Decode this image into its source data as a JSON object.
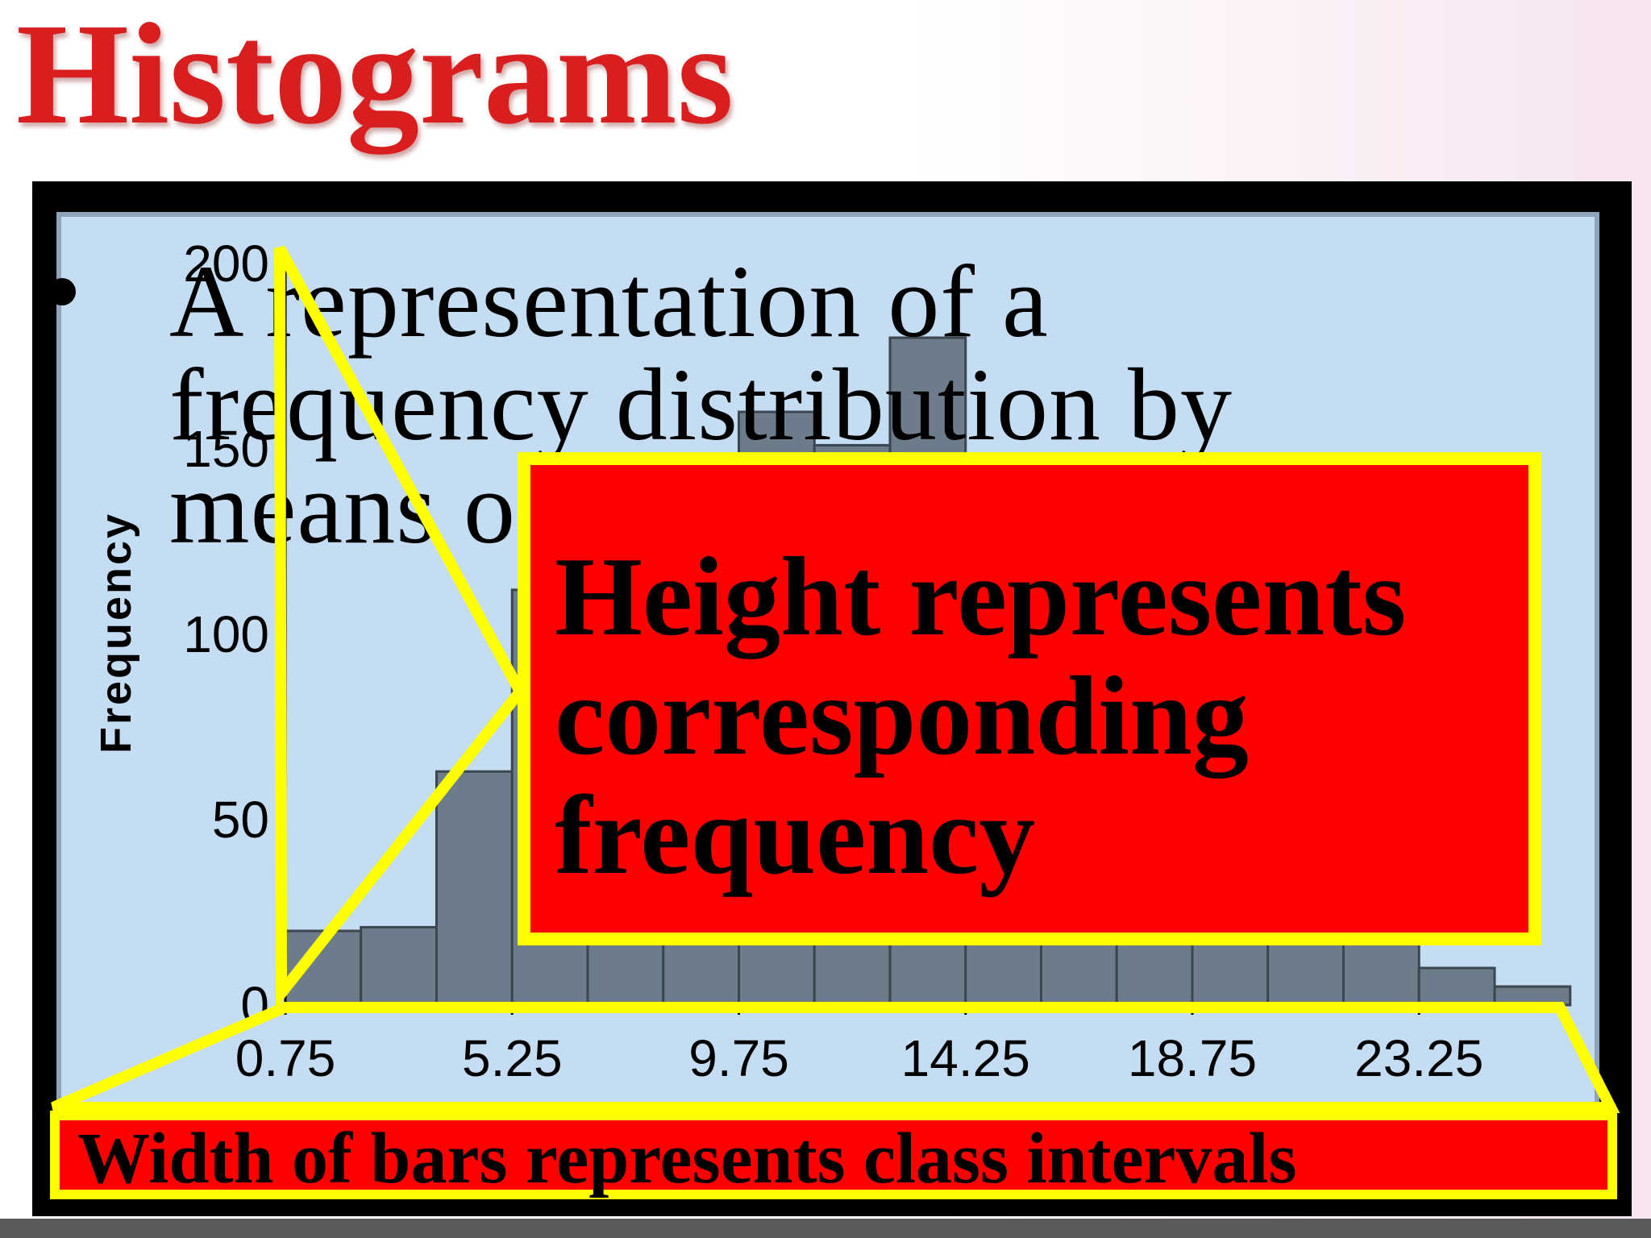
{
  "slide": {
    "title": "Histograms",
    "body_text": "A representation of  a frequency distribution by means of",
    "height_callout": "Height represents corresponding frequency",
    "width_callout": "Width of  bars represents class intervals"
  },
  "colors": {
    "title": "#d81e1e",
    "bar_fill": "#6d7c8a",
    "plot_background": "#c5ddf2",
    "callout_fill": "#ff0000",
    "callout_border": "#ffff00"
  },
  "chart_data": {
    "type": "bar",
    "title": "",
    "xlabel": "",
    "ylabel": "Frequency",
    "bin_width": 1.5,
    "x_start": 0.75,
    "x_ticks": [
      0.75,
      5.25,
      9.75,
      14.25,
      18.75,
      23.25
    ],
    "x_tick_labels": [
      "0.75",
      "5.25",
      "9.75",
      "14.25",
      "18.75",
      "23.25"
    ],
    "y_ticks": [
      0,
      50,
      100,
      150,
      200
    ],
    "y_tick_labels": [
      "0",
      "50",
      "100",
      "150",
      "200"
    ],
    "ylim": [
      0,
      200
    ],
    "xlim": [
      0.75,
      25.5
    ],
    "values": [
      20,
      21,
      63,
      112,
      138,
      141,
      160,
      151,
      180,
      140,
      118,
      95,
      72,
      46,
      30,
      10,
      5
    ],
    "grid": false
  }
}
